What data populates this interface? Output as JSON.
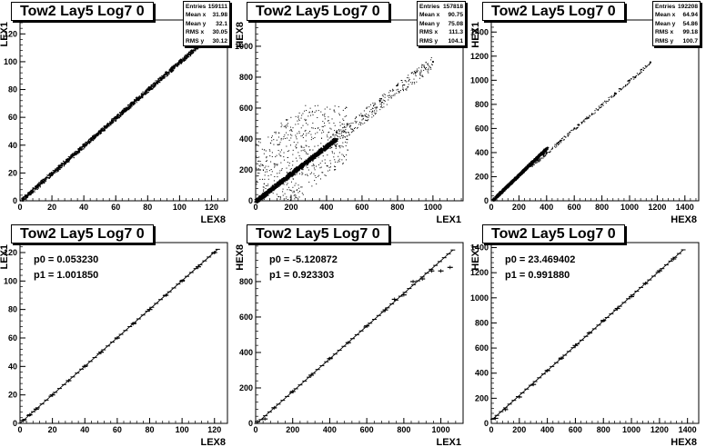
{
  "chart_data": [
    {
      "type": "scatter",
      "title": "Tow2 Lay5 Log7 0",
      "xlabel": "LEX8",
      "ylabel": "LEX1",
      "xlim": [
        0,
        130
      ],
      "ylim": [
        0,
        130
      ],
      "x_ticks": [
        0,
        20,
        40,
        60,
        80,
        100,
        120
      ],
      "y_ticks": [
        0,
        20,
        40,
        60,
        80,
        100,
        120
      ],
      "stats": [
        {
          "label": "Entries",
          "value": "159111"
        },
        {
          "label": "Mean x",
          "value": "31.98"
        },
        {
          "label": "Mean y",
          "value": "32.1"
        },
        {
          "label": "RMS x",
          "value": "30.05"
        },
        {
          "label": "RMS y",
          "value": "30.12"
        }
      ],
      "points": [
        [
          2,
          2
        ],
        [
          10,
          10
        ],
        [
          20,
          20
        ],
        [
          30,
          30
        ],
        [
          40,
          40
        ],
        [
          50,
          50
        ],
        [
          60,
          60
        ],
        [
          70,
          70
        ],
        [
          80,
          80
        ],
        [
          90,
          90
        ],
        [
          100,
          100
        ],
        [
          110,
          110
        ],
        [
          118,
          118
        ]
      ],
      "band": {
        "from": [
          1,
          1
        ],
        "to": [
          118,
          118
        ],
        "width": 2.2
      }
    },
    {
      "type": "scatter",
      "title": "Tow2 Lay5 Log7 0",
      "xlabel": "LEX1",
      "ylabel": "HEX8",
      "xlim": [
        0,
        1170
      ],
      "ylim": [
        0,
        1170
      ],
      "x_ticks": [
        0,
        200,
        400,
        600,
        800,
        1000
      ],
      "y_ticks": [
        0,
        200,
        400,
        600,
        800,
        1000
      ],
      "stats": [
        {
          "label": "Entries",
          "value": "157818"
        },
        {
          "label": "Mean x",
          "value": "90.75"
        },
        {
          "label": "Mean y",
          "value": "75.08"
        },
        {
          "label": "RMS x",
          "value": "111.3"
        },
        {
          "label": "RMS y",
          "value": "104.1"
        }
      ],
      "points": [
        [
          20,
          10
        ],
        [
          50,
          40
        ],
        [
          100,
          80
        ],
        [
          200,
          175
        ],
        [
          300,
          265
        ],
        [
          400,
          360
        ],
        [
          500,
          450
        ],
        [
          600,
          550
        ],
        [
          700,
          650
        ],
        [
          800,
          750
        ],
        [
          900,
          830
        ],
        [
          1000,
          900
        ]
      ],
      "band": {
        "from": [
          0,
          0
        ],
        "to": [
          450,
          400
        ],
        "width": 22
      }
    },
    {
      "type": "scatter",
      "title": "Tow2 Lay5 Log7 0",
      "xlabel": "HEX8",
      "ylabel": "HEX1",
      "xlim": [
        0,
        1500
      ],
      "ylim": [
        0,
        1500
      ],
      "x_ticks": [
        0,
        200,
        400,
        600,
        800,
        1000,
        1200,
        1400
      ],
      "y_ticks": [
        0,
        200,
        400,
        600,
        800,
        1000,
        1200,
        1400
      ],
      "stats": [
        {
          "label": "Entries",
          "value": "192208"
        },
        {
          "label": "Mean x",
          "value": "64.94"
        },
        {
          "label": "Mean y",
          "value": "54.86"
        },
        {
          "label": "RMS x",
          "value": "99.18"
        },
        {
          "label": "RMS y",
          "value": "100.7"
        }
      ],
      "points": [
        [
          20,
          20
        ],
        [
          60,
          70
        ],
        [
          120,
          130
        ],
        [
          200,
          210
        ],
        [
          300,
          300
        ],
        [
          400,
          400
        ],
        [
          500,
          500
        ],
        [
          600,
          600
        ],
        [
          700,
          690
        ],
        [
          800,
          800
        ],
        [
          900,
          890
        ],
        [
          1000,
          1000
        ],
        [
          1150,
          1150
        ]
      ],
      "band": {
        "from": [
          10,
          10
        ],
        "to": [
          400,
          440
        ],
        "width": 18
      }
    },
    {
      "type": "line",
      "title": "Tow2 Lay5 Log7 0",
      "xlabel": "LEX8",
      "ylabel": "LEX1",
      "xlim": [
        0,
        128
      ],
      "ylim": [
        0,
        127
      ],
      "x_ticks": [
        0,
        20,
        40,
        60,
        80,
        100,
        120
      ],
      "y_ticks": [
        0,
        20,
        40,
        60,
        80,
        100,
        120
      ],
      "fit": {
        "p0": "p0 = 0.053230",
        "p1": "p1 = 1.001850",
        "intercept": 0.05323,
        "slope": 1.00185
      },
      "x_range": [
        0,
        122
      ],
      "profile_points": [
        [
          2,
          2
        ],
        [
          6,
          6
        ],
        [
          10,
          10
        ],
        [
          20,
          20
        ],
        [
          30,
          30
        ],
        [
          40,
          40
        ],
        [
          50,
          50
        ],
        [
          60,
          60
        ],
        [
          70,
          70
        ],
        [
          80,
          80
        ],
        [
          90,
          90
        ],
        [
          100,
          100
        ],
        [
          110,
          110
        ],
        [
          120,
          120
        ]
      ]
    },
    {
      "type": "line",
      "title": "Tow2 Lay5 Log7 0",
      "xlabel": "LEX1",
      "ylabel": "HEX8",
      "xlim": [
        0,
        1120
      ],
      "ylim": [
        0,
        1020
      ],
      "x_ticks": [
        0,
        200,
        400,
        600,
        800,
        1000
      ],
      "y_ticks": [
        0,
        200,
        400,
        600,
        800
      ],
      "fit": {
        "p0": "p0 = -5.120872",
        "p1": "p1 = 0.923303",
        "intercept": -5.120872,
        "slope": 0.923303
      },
      "x_range": [
        5,
        1065
      ],
      "profile_points": [
        [
          10,
          10
        ],
        [
          50,
          25
        ],
        [
          100,
          88
        ],
        [
          200,
          180
        ],
        [
          300,
          272
        ],
        [
          400,
          365
        ],
        [
          500,
          455
        ],
        [
          600,
          550
        ],
        [
          700,
          640
        ],
        [
          750,
          700
        ],
        [
          800,
          725
        ],
        [
          850,
          800
        ],
        [
          900,
          815
        ],
        [
          950,
          860
        ],
        [
          1000,
          860
        ],
        [
          1050,
          880
        ]
      ]
    },
    {
      "type": "line",
      "title": "Tow2 Lay5 Log7 0",
      "xlabel": "HEX8",
      "ylabel": "HEX1",
      "xlim": [
        0,
        1480
      ],
      "ylim": [
        0,
        1440
      ],
      "x_ticks": [
        0,
        200,
        400,
        600,
        800,
        1000,
        1200,
        1400
      ],
      "y_ticks": [
        0,
        200,
        400,
        600,
        800,
        1000,
        1200,
        1400
      ],
      "fit": {
        "p0": "p0 = 23.469402",
        "p1": "p1 = 0.991880",
        "intercept": 23.469402,
        "slope": 0.99188
      },
      "x_range": [
        10,
        1370
      ],
      "profile_points": [
        [
          30,
          40
        ],
        [
          100,
          110
        ],
        [
          200,
          210
        ],
        [
          300,
          310
        ],
        [
          400,
          420
        ],
        [
          500,
          520
        ],
        [
          600,
          620
        ],
        [
          700,
          720
        ],
        [
          800,
          820
        ],
        [
          900,
          915
        ],
        [
          1000,
          1010
        ],
        [
          1100,
          1115
        ],
        [
          1200,
          1215
        ],
        [
          1300,
          1310
        ]
      ]
    }
  ]
}
